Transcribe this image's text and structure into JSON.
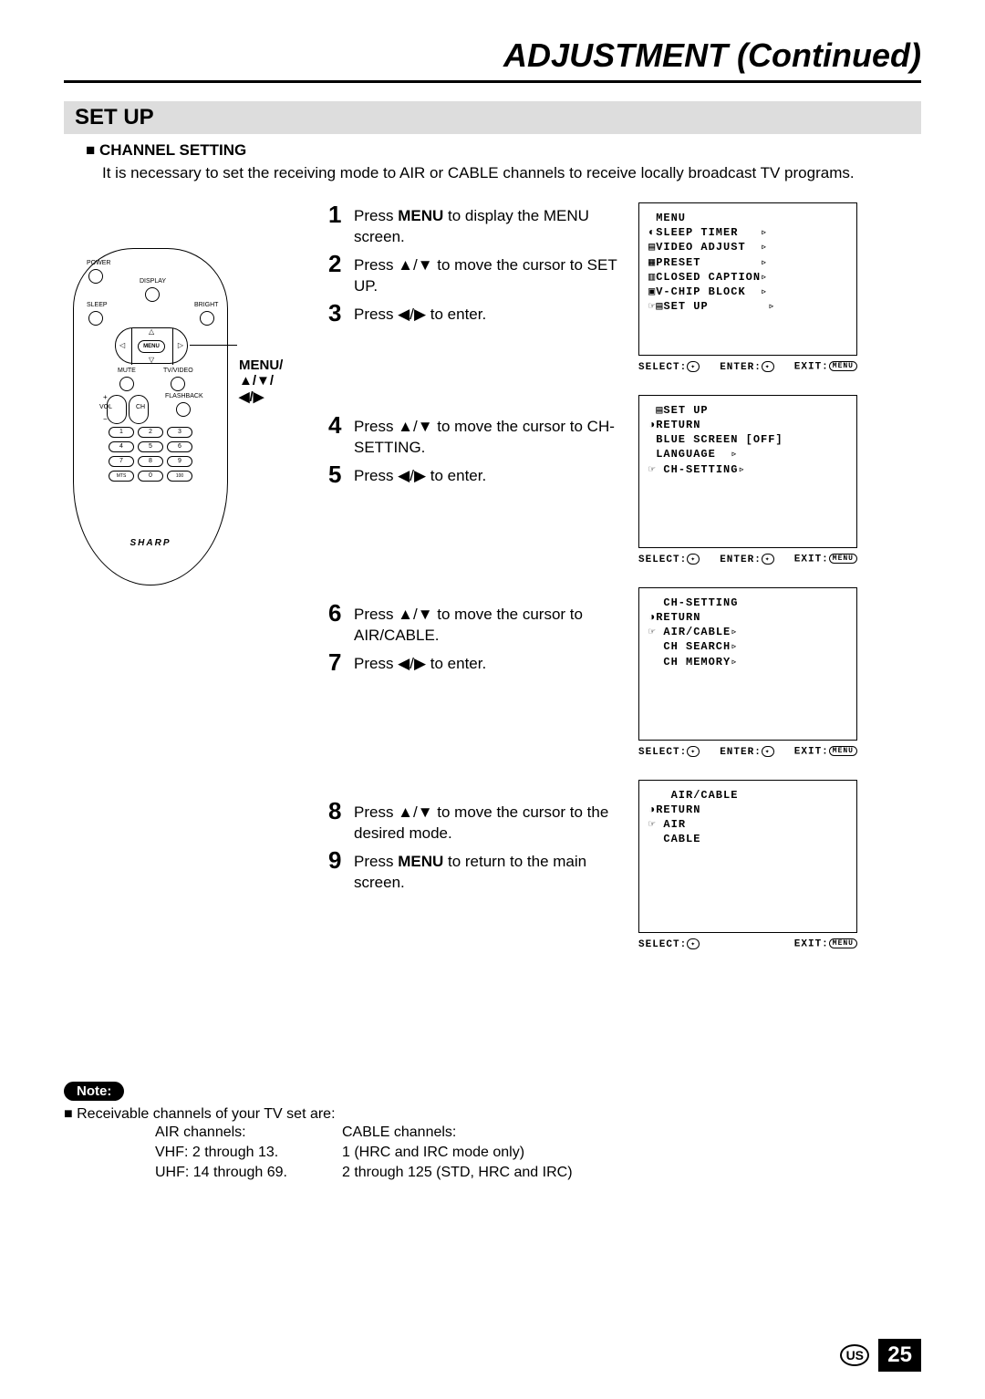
{
  "page": {
    "title": "ADJUSTMENT (Continued)",
    "section": "SET UP",
    "subheading": "CHANNEL SETTING",
    "intro": "It is necessary to set the receiving mode to AIR or CABLE channels to receive locally broadcast TV programs.",
    "callout": "MENU/\n▲/▼/\n◀/▶",
    "page_number": "25",
    "region": "US"
  },
  "remote": {
    "labels": {
      "power": "POWER",
      "display": "DISPLAY",
      "sleep": "SLEEP",
      "bright": "BRIGHT",
      "mute": "MUTE",
      "tvvideo": "TV/VIDEO",
      "flashback": "FLASHBACK",
      "vol": "VOL",
      "ch": "CH",
      "menu": "MENU"
    },
    "keys": [
      "1",
      "2",
      "3",
      "4",
      "5",
      "6",
      "7",
      "8",
      "9",
      "MTS",
      "0",
      "100"
    ],
    "brand": "SHARP"
  },
  "steps": {
    "g1": [
      {
        "n": "1",
        "t": "Press <b>MENU</b> to display the MENU screen."
      },
      {
        "n": "2",
        "t": "Press ▲/▼ to move the cursor to SET UP."
      },
      {
        "n": "3",
        "t": "Press ◀/▶ to enter."
      }
    ],
    "g2": [
      {
        "n": "4",
        "t": "Press ▲/▼ to move the cursor to CH-SETTING."
      },
      {
        "n": "5",
        "t": "Press ◀/▶ to enter."
      }
    ],
    "g3": [
      {
        "n": "6",
        "t": "Press ▲/▼ to move the cursor to AIR/CABLE."
      },
      {
        "n": "7",
        "t": "Press ◀/▶ to enter."
      }
    ],
    "g4": [
      {
        "n": "8",
        "t": "Press ▲/▼ to move the cursor to the desired mode."
      },
      {
        "n": "9",
        "t": "Press <b>MENU</b> to return to the main screen."
      }
    ]
  },
  "osd": {
    "screen1": {
      "title": "MENU",
      "items": [
        "◐SLEEP TIMER   ▹",
        "▤VIDEO ADJUST  ▹",
        "▦PRESET        ▹",
        "▥CLOSED CAPTION▹",
        "▣V-CHIP BLOCK  ▹",
        "☞▤SET UP        ▹"
      ],
      "footer": {
        "select": "SELECT:",
        "enter": "ENTER:",
        "exit": "EXIT:"
      }
    },
    "screen2": {
      "title": "▤SET UP",
      "items": [
        "◑RETURN",
        " BLUE SCREEN [OFF]",
        " LANGUAGE  ▹",
        "☞ CH-SETTING▹"
      ],
      "footer": {
        "select": "SELECT:",
        "enter": "ENTER:",
        "exit": "EXIT:"
      }
    },
    "screen3": {
      "title": " CH-SETTING",
      "items": [
        "◑RETURN",
        "☞ AIR/CABLE▹",
        "  CH SEARCH▹",
        "  CH MEMORY▹"
      ],
      "footer": {
        "select": "SELECT:",
        "enter": "ENTER:",
        "exit": "EXIT:"
      }
    },
    "screen4": {
      "title": "  AIR/CABLE",
      "items": [
        "◑RETURN",
        "☞ AIR",
        "  CABLE"
      ],
      "footer": {
        "select": "SELECT:",
        "exit": "EXIT:"
      }
    },
    "menu_icon": "MENU"
  },
  "note": {
    "label": "Note:",
    "heading": "Receivable channels of your TV set are:",
    "col1": [
      "AIR channels:",
      "VHF: 2 through 13.",
      "UHF: 14 through 69."
    ],
    "col2": [
      "CABLE channels:",
      "1 (HRC and IRC mode only)",
      "2 through 125 (STD, HRC and IRC)"
    ]
  }
}
